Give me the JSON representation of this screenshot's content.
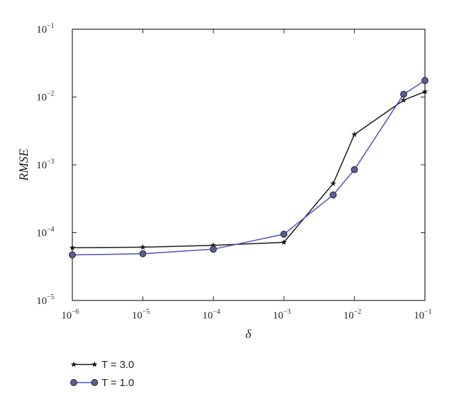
{
  "chart_data": {
    "type": "line",
    "xlabel": "δ",
    "ylabel": "RMSE",
    "x_scale": "log",
    "y_scale": "log",
    "xlim": [
      1e-06,
      0.1
    ],
    "ylim": [
      1e-05,
      0.1
    ],
    "x_ticks": [
      {
        "base": "10",
        "exp": "−6",
        "value": 1e-06
      },
      {
        "base": "10",
        "exp": "−5",
        "value": 1e-05
      },
      {
        "base": "10",
        "exp": "−4",
        "value": 0.0001
      },
      {
        "base": "10",
        "exp": "−3",
        "value": 0.001
      },
      {
        "base": "10",
        "exp": "−2",
        "value": 0.01
      },
      {
        "base": "10",
        "exp": "−1",
        "value": 0.1
      }
    ],
    "y_ticks": [
      {
        "base": "10",
        "exp": "−5",
        "value": 1e-05
      },
      {
        "base": "10",
        "exp": "−4",
        "value": 0.0001
      },
      {
        "base": "10",
        "exp": "−3",
        "value": 0.001
      },
      {
        "base": "10",
        "exp": "−2",
        "value": 0.01
      },
      {
        "base": "10",
        "exp": "−1",
        "value": 0.1
      }
    ],
    "grid": false,
    "legend_position": "bottom-left, below plot",
    "series": [
      {
        "name": "T = 3.0",
        "color": "#1a1a1a",
        "marker": "star",
        "x": [
          1e-06,
          1e-05,
          0.0001,
          0.001,
          0.005,
          0.01,
          0.05,
          0.1
        ],
        "y": [
          6e-05,
          6.1e-05,
          6.5e-05,
          7.2e-05,
          0.00053,
          0.0028,
          0.009,
          0.012
        ]
      },
      {
        "name": "T = 1.0",
        "color": "#4a4fc4",
        "marker": "hexagon",
        "x": [
          1e-06,
          1e-05,
          0.0001,
          0.001,
          0.005,
          0.01,
          0.05,
          0.1
        ],
        "y": [
          4.7e-05,
          4.9e-05,
          5.7e-05,
          9.5e-05,
          0.00036,
          0.00085,
          0.011,
          0.0175
        ]
      }
    ]
  }
}
